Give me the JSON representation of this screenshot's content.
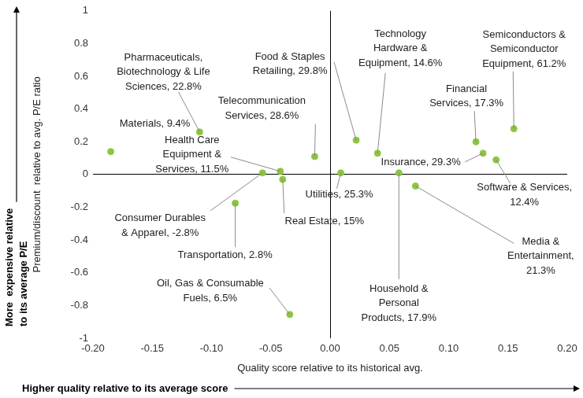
{
  "chart_data": {
    "type": "scatter",
    "x_label": "Quality score relative to its historical avg.",
    "y_label": "Premium/discount  relative to avg. P/E ratio",
    "x_note": "Higher quality relative to its average score",
    "y_note": "More  expensive relative\nto its average P/E",
    "point_labels": [
      "Materials, 9.4%",
      "Pharmaceuticals,\nBiotechnology & Life\nSciences, 22.8%",
      "Health Care\nEquipment &\nServices, 11.5%",
      "Consumer Durables\n& Apparel, -2.8%",
      "Real Estate, 15%",
      "Transportation, 2.8%",
      "Telecommunication\nServices, 28.6%",
      "Oil, Gas & Consumable\nFuels, 6.5%",
      "Utilities, 25.3%",
      "Food & Staples\nRetailing, 29.8%",
      "Technology\nHardware &\nEquipment, 14.6%",
      "Household &\nPersonal\nProducts, 17.9%",
      "Media &\nEntertainment,\n21.3%",
      "Financial\nServices, 17.3%",
      "Insurance, 29.3%",
      "Software & Services,\n12.4%",
      "Semiconductors &\nSemiconductor\nEquipment, 61.2%"
    ],
    "x": [
      -0.185,
      -0.11,
      -0.042,
      -0.057,
      -0.04,
      -0.08,
      -0.013,
      -0.034,
      0.009,
      0.022,
      0.04,
      0.058,
      0.072,
      0.123,
      0.129,
      0.14,
      0.155
    ],
    "values": [
      0.14,
      0.26,
      0.02,
      0.01,
      -0.03,
      -0.175,
      0.11,
      -0.855,
      0.01,
      0.21,
      0.13,
      0.01,
      -0.07,
      0.2,
      0.13,
      0.09,
      0.28
    ],
    "color": "#8cc63f",
    "marker": "circle",
    "xlim": [
      -0.2,
      0.2
    ],
    "xticks": [
      {
        "value": -0.2,
        "label": "-0.20"
      },
      {
        "value": -0.15,
        "label": "-0.15"
      },
      {
        "value": -0.1,
        "label": "-0.10"
      },
      {
        "value": -0.05,
        "label": "-0.05"
      },
      {
        "value": 0,
        "label": "0.00"
      },
      {
        "value": 0.05,
        "label": "0.05"
      },
      {
        "value": 0.1,
        "label": "0.10"
      },
      {
        "value": 0.15,
        "label": "0.15"
      },
      {
        "value": 0.2,
        "label": "0.20"
      }
    ],
    "ylim": [
      -1,
      1
    ],
    "yticks": [
      -1,
      -0.8,
      -0.6,
      -0.4,
      -0.2,
      0,
      0.2,
      0.4,
      0.6,
      0.8,
      1
    ],
    "grid": false
  }
}
